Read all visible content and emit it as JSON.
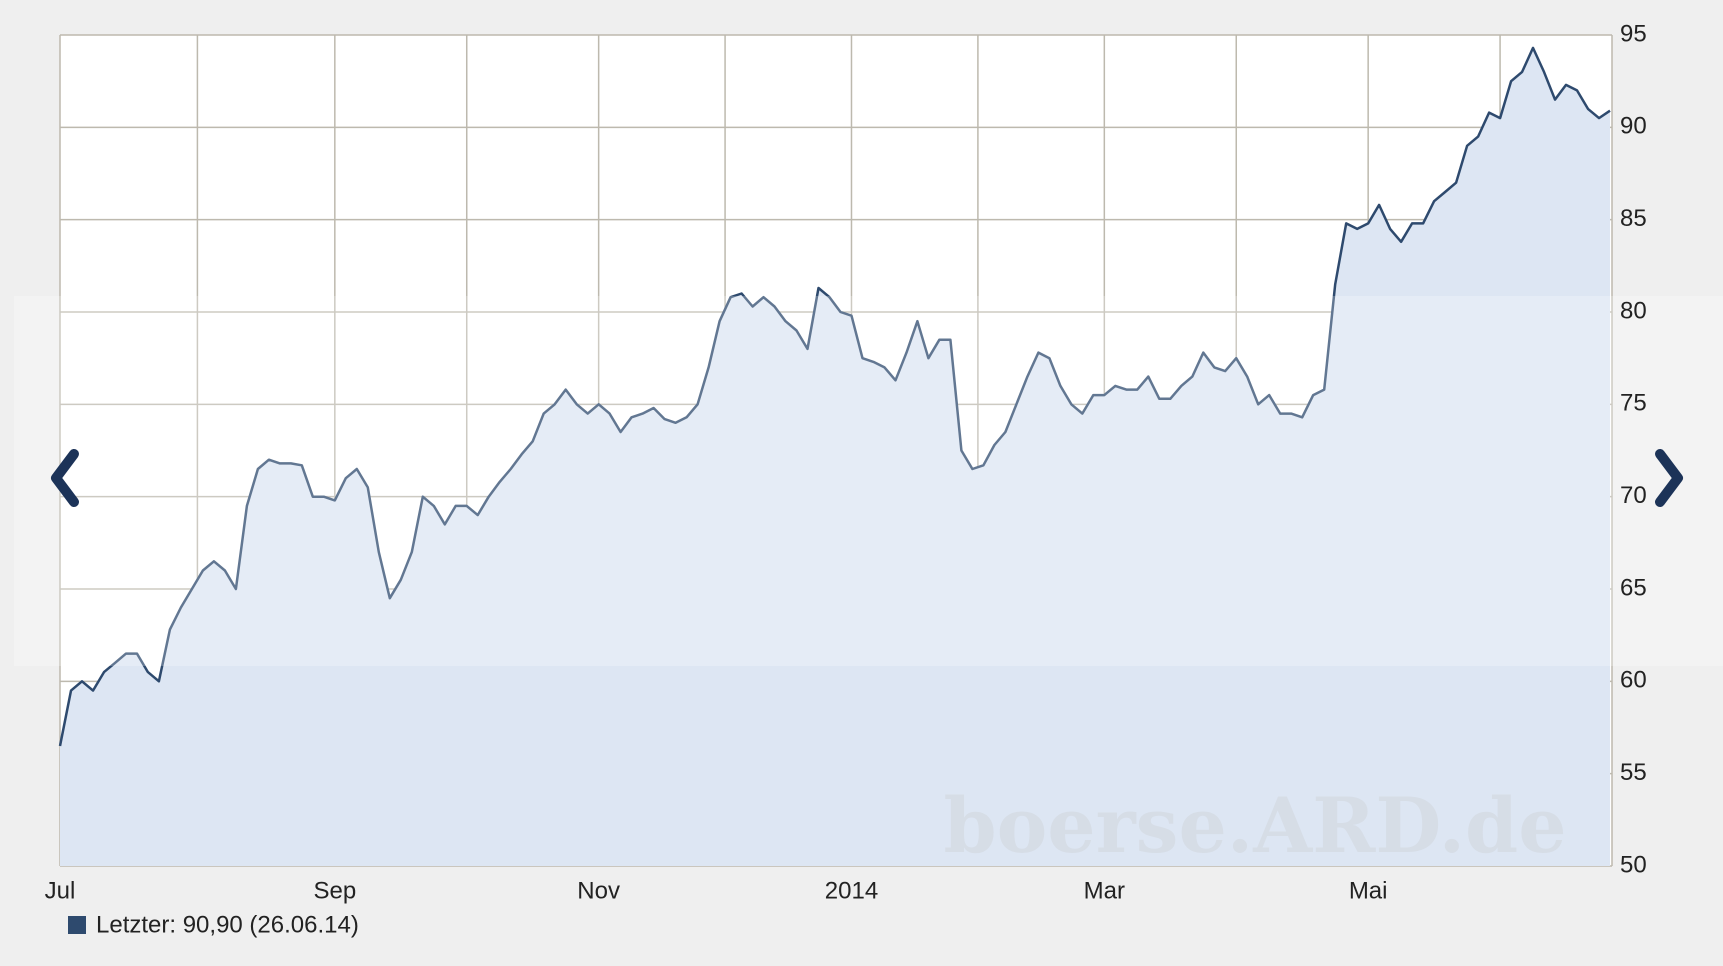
{
  "chart_data": {
    "type": "area",
    "categories": [
      "Jul",
      null,
      null,
      null,
      null,
      null,
      null,
      null,
      null,
      null,
      null,
      null,
      null,
      null,
      null,
      null,
      null,
      null,
      null,
      null,
      null,
      null,
      null,
      null,
      null,
      "Sep",
      null,
      null,
      null,
      null,
      null,
      null,
      null,
      null,
      null,
      null,
      null,
      null,
      null,
      null,
      null,
      null,
      null,
      null,
      null,
      null,
      null,
      null,
      null,
      "Nov",
      null,
      null,
      null,
      null,
      null,
      null,
      null,
      null,
      null,
      null,
      null,
      null,
      null,
      null,
      null,
      null,
      null,
      null,
      null,
      null,
      null,
      null,
      "2014",
      null,
      null,
      null,
      null,
      null,
      null,
      null,
      null,
      null,
      null,
      null,
      null,
      null,
      null,
      null,
      null,
      null,
      null,
      null,
      null,
      null,
      null,
      "Mar",
      null,
      null,
      null,
      null,
      null,
      null,
      null,
      null,
      null,
      null,
      null,
      null,
      null,
      null,
      null,
      null,
      null,
      null,
      null,
      null,
      null,
      null,
      null,
      "Mai",
      null,
      null,
      null,
      null,
      null,
      null,
      null,
      null,
      null,
      null,
      null,
      null,
      null,
      null,
      null,
      null,
      null,
      null,
      null,
      null,
      null,
      null
    ],
    "series": [
      {
        "name": "Letzter: 90,90 (26.06.14)",
        "color": "#2e4a6e",
        "fill": "#dde6f3",
        "values": [
          56.5,
          59.5,
          60,
          59.5,
          60.5,
          61,
          61.5,
          61.5,
          60.5,
          60,
          62.8,
          64,
          65,
          66,
          66.5,
          66,
          65,
          69.5,
          71.5,
          72,
          71.8,
          71.8,
          71.7,
          70,
          70,
          69.8,
          71,
          71.5,
          70.5,
          67,
          64.5,
          65.5,
          67,
          70,
          69.5,
          68.5,
          69.5,
          69.5,
          69,
          70,
          70.8,
          71.5,
          72.3,
          73,
          74.5,
          75,
          75.8,
          75,
          74.5,
          75,
          74.5,
          73.5,
          74.3,
          74.5,
          74.8,
          74.2,
          74,
          74.3,
          75,
          77,
          79.5,
          80.8,
          81,
          80.3,
          80.8,
          80.3,
          79.5,
          79,
          78,
          81.3,
          80.8,
          80,
          79.8,
          77.5,
          77.3,
          77,
          76.3,
          77.8,
          79.5,
          77.5,
          78.5,
          78.5,
          72.5,
          71.5,
          71.7,
          72.8,
          73.5,
          75,
          76.5,
          77.8,
          77.5,
          76,
          75,
          74.5,
          75.5,
          75.5,
          76,
          75.8,
          75.8,
          76.5,
          75.3,
          75.3,
          76,
          76.5,
          77.8,
          77,
          76.8,
          77.5,
          76.5,
          75,
          75.5,
          74.5,
          74.5,
          74.3,
          75.5,
          75.8,
          81.5,
          84.8,
          84.5,
          84.8,
          85.8,
          84.5,
          83.8,
          84.8,
          84.8,
          86,
          86.5,
          87,
          89,
          89.5,
          90.8,
          90.5,
          92.5,
          93,
          94.3,
          93,
          91.5,
          92.3,
          92,
          91,
          90.5,
          90.9
        ]
      }
    ],
    "ylim": [
      50,
      95
    ],
    "yticks": [
      50,
      55,
      60,
      65,
      70,
      75,
      80,
      85,
      90,
      95
    ],
    "grid": true,
    "watermark": "boerse.ARD.de"
  }
}
